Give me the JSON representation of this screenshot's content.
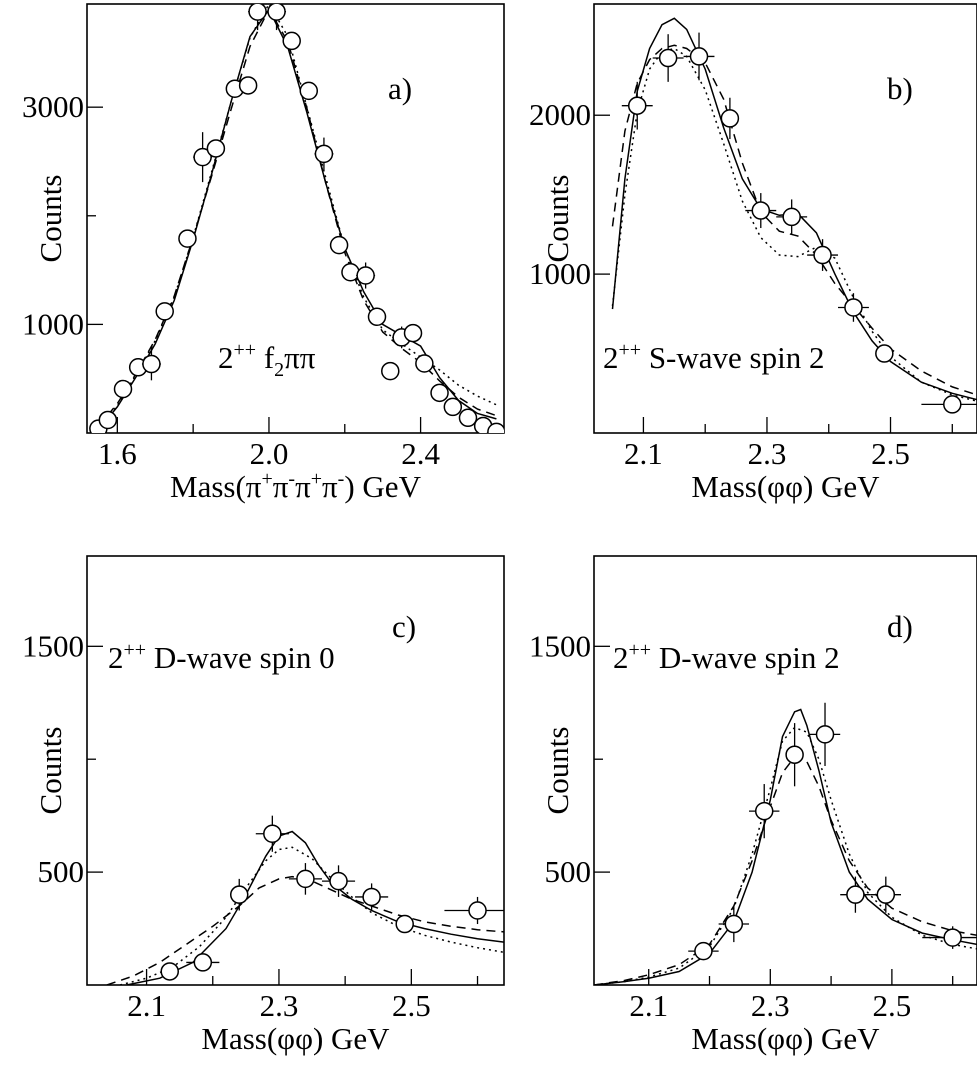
{
  "chart_data": [
    {
      "type": "scatter",
      "panel_label": "a)",
      "annotation": {
        "pre": "2",
        "sup": "++",
        "mid": " f",
        "sub": "2",
        "post": "ππ"
      },
      "xlabel": {
        "pre": "Mass(π",
        "s1": "+",
        "m1": "π",
        "s2": "-",
        "m2": "π",
        "s3": "+",
        "m3": "π",
        "s4": "-",
        "post": ") GeV"
      },
      "ylabel": "Counts",
      "xlim": [
        1.52,
        2.62
      ],
      "ylim": [
        0,
        3950
      ],
      "x_ticks": [
        1.6,
        1.8,
        2.0,
        2.2,
        2.4,
        2.6
      ],
      "x_tick_labels": [
        "1.6",
        "",
        "2.0",
        "",
        "2.4",
        ""
      ],
      "y_ticks": [
        1000,
        2000,
        3000
      ],
      "y_tick_labels": [
        "1000",
        "",
        "3000"
      ],
      "points": [
        {
          "x": 1.55,
          "y": 40,
          "xerr": 0,
          "yerr": 0
        },
        {
          "x": 1.575,
          "y": 120,
          "xerr": 0,
          "yerr": 0
        },
        {
          "x": 1.615,
          "y": 405,
          "xerr": 0,
          "yerr": 0
        },
        {
          "x": 1.655,
          "y": 605,
          "xerr": 0,
          "yerr": 0
        },
        {
          "x": 1.69,
          "y": 635,
          "xerr": 0.025,
          "yerr": 150
        },
        {
          "x": 1.725,
          "y": 1120,
          "xerr": 0,
          "yerr": 0
        },
        {
          "x": 1.785,
          "y": 1790,
          "xerr": 0,
          "yerr": 0
        },
        {
          "x": 1.825,
          "y": 2540,
          "xerr": 0.025,
          "yerr": 230
        },
        {
          "x": 1.86,
          "y": 2620,
          "xerr": 0,
          "yerr": 0
        },
        {
          "x": 1.91,
          "y": 3170,
          "xerr": 0,
          "yerr": 0
        },
        {
          "x": 1.945,
          "y": 3200,
          "xerr": 0,
          "yerr": 0
        },
        {
          "x": 1.97,
          "y": 3880,
          "xerr": 0.025,
          "yerr": 170
        },
        {
          "x": 2.02,
          "y": 3880,
          "xerr": 0.025,
          "yerr": 170
        },
        {
          "x": 2.06,
          "y": 3610,
          "xerr": 0,
          "yerr": 0
        },
        {
          "x": 2.105,
          "y": 3150,
          "xerr": 0,
          "yerr": 0
        },
        {
          "x": 2.145,
          "y": 2570,
          "xerr": 0.025,
          "yerr": 150
        },
        {
          "x": 2.185,
          "y": 1730,
          "xerr": 0,
          "yerr": 0
        },
        {
          "x": 2.215,
          "y": 1480,
          "xerr": 0,
          "yerr": 0
        },
        {
          "x": 2.255,
          "y": 1450,
          "xerr": 0.025,
          "yerr": 120
        },
        {
          "x": 2.285,
          "y": 1070,
          "xerr": 0,
          "yerr": 0
        },
        {
          "x": 2.32,
          "y": 570,
          "xerr": 0,
          "yerr": 0
        },
        {
          "x": 2.35,
          "y": 880,
          "xerr": 0.025,
          "yerr": 100
        },
        {
          "x": 2.38,
          "y": 920,
          "xerr": 0,
          "yerr": 0
        },
        {
          "x": 2.41,
          "y": 640,
          "xerr": 0,
          "yerr": 0
        },
        {
          "x": 2.45,
          "y": 370,
          "xerr": 0,
          "yerr": 0
        },
        {
          "x": 2.485,
          "y": 240,
          "xerr": 0,
          "yerr": 0
        },
        {
          "x": 2.525,
          "y": 140,
          "xerr": 0,
          "yerr": 0
        },
        {
          "x": 2.565,
          "y": 65,
          "xerr": 0,
          "yerr": 0
        },
        {
          "x": 2.6,
          "y": 10,
          "xerr": 0,
          "yerr": 0
        }
      ],
      "curves": [
        {
          "style": "solid",
          "x": [
            1.55,
            1.6,
            1.65,
            1.7,
            1.75,
            1.8,
            1.85,
            1.9,
            1.95,
            2.0,
            2.05,
            2.1,
            2.15,
            2.2,
            2.25,
            2.3,
            2.35,
            2.4,
            2.45,
            2.5,
            2.55,
            2.6
          ],
          "y": [
            30,
            240,
            520,
            820,
            1220,
            1780,
            2400,
            3050,
            3650,
            3900,
            3550,
            2950,
            2300,
            1700,
            1300,
            1000,
            900,
            800,
            510,
            300,
            180,
            130
          ]
        },
        {
          "style": "dashed",
          "x": [
            1.55,
            1.6,
            1.65,
            1.7,
            1.75,
            1.8,
            1.85,
            1.9,
            1.95,
            2.0,
            2.05,
            2.1,
            2.15,
            2.2,
            2.25,
            2.3,
            2.35,
            2.4,
            2.45,
            2.5,
            2.55,
            2.6
          ],
          "y": [
            60,
            270,
            550,
            860,
            1260,
            1800,
            2380,
            2980,
            3560,
            3900,
            3600,
            2990,
            2300,
            1660,
            1220,
            930,
            780,
            650,
            480,
            330,
            220,
            160
          ]
        },
        {
          "style": "dotted",
          "x": [
            1.55,
            1.6,
            1.65,
            1.7,
            1.75,
            1.8,
            1.85,
            1.9,
            1.95,
            2.0,
            2.05,
            2.1,
            2.15,
            2.2,
            2.25,
            2.3,
            2.35,
            2.4,
            2.45,
            2.5,
            2.55,
            2.6
          ],
          "y": [
            50,
            250,
            540,
            850,
            1250,
            1800,
            2420,
            3050,
            3640,
            3950,
            3650,
            3000,
            2350,
            1700,
            1250,
            950,
            820,
            700,
            580,
            440,
            340,
            260
          ]
        }
      ]
    },
    {
      "type": "scatter",
      "panel_label": "b)",
      "annotation": {
        "pre": "2",
        "sup": "++",
        "mid": " S-wave spin 2",
        "sub": "",
        "post": ""
      },
      "xlabel": {
        "pre": "Mass(φφ) GeV",
        "s1": "",
        "m1": "",
        "s2": "",
        "m2": "",
        "s3": "",
        "m3": "",
        "s4": "",
        "post": ""
      },
      "ylabel": "Counts",
      "xlim": [
        2.02,
        2.64
      ],
      "ylim": [
        0,
        2700
      ],
      "x_ticks": [
        2.1,
        2.2,
        2.3,
        2.4,
        2.5,
        2.6
      ],
      "x_tick_labels": [
        "2.1",
        "",
        "2.3",
        "",
        "2.5",
        ""
      ],
      "y_ticks": [
        1000,
        2000
      ],
      "y_tick_labels": [
        "1000",
        "2000"
      ],
      "points": [
        {
          "x": 2.09,
          "y": 2060,
          "xerr": 0.025,
          "yerr": 150
        },
        {
          "x": 2.14,
          "y": 2360,
          "xerr": 0.025,
          "yerr": 150
        },
        {
          "x": 2.19,
          "y": 2370,
          "xerr": 0.025,
          "yerr": 150
        },
        {
          "x": 2.24,
          "y": 1980,
          "xerr": 0,
          "yerr": 130
        },
        {
          "x": 2.29,
          "y": 1400,
          "xerr": 0.025,
          "yerr": 110
        },
        {
          "x": 2.34,
          "y": 1360,
          "xerr": 0.025,
          "yerr": 110
        },
        {
          "x": 2.39,
          "y": 1120,
          "xerr": 0.025,
          "yerr": 100
        },
        {
          "x": 2.44,
          "y": 790,
          "xerr": 0.025,
          "yerr": 90
        },
        {
          "x": 2.49,
          "y": 500,
          "xerr": 0,
          "yerr": 0
        },
        {
          "x": 2.6,
          "y": 180,
          "xerr": 0.05,
          "yerr": 50
        }
      ],
      "curves": [
        {
          "style": "solid",
          "x": [
            2.05,
            2.07,
            2.09,
            2.11,
            2.13,
            2.15,
            2.17,
            2.2,
            2.23,
            2.26,
            2.29,
            2.32,
            2.35,
            2.38,
            2.41,
            2.44,
            2.47,
            2.5,
            2.55,
            2.6,
            2.64
          ],
          "y": [
            780,
            1600,
            2150,
            2420,
            2570,
            2610,
            2540,
            2290,
            1920,
            1600,
            1410,
            1370,
            1380,
            1260,
            1000,
            760,
            580,
            450,
            320,
            250,
            210
          ]
        },
        {
          "style": "dashed",
          "x": [
            2.05,
            2.07,
            2.09,
            2.11,
            2.13,
            2.15,
            2.17,
            2.2,
            2.23,
            2.26,
            2.29,
            2.32,
            2.35,
            2.38,
            2.41,
            2.44,
            2.47,
            2.5,
            2.55,
            2.6,
            2.64
          ],
          "y": [
            1300,
            1900,
            2200,
            2350,
            2420,
            2440,
            2420,
            2330,
            2100,
            1700,
            1390,
            1270,
            1240,
            1120,
            940,
            800,
            660,
            530,
            390,
            290,
            240
          ]
        },
        {
          "style": "dotted",
          "x": [
            2.05,
            2.07,
            2.09,
            2.11,
            2.13,
            2.15,
            2.17,
            2.2,
            2.23,
            2.26,
            2.29,
            2.32,
            2.35,
            2.38,
            2.41,
            2.44,
            2.47,
            2.5,
            2.55,
            2.6,
            2.64
          ],
          "y": [
            800,
            1500,
            2020,
            2290,
            2400,
            2420,
            2370,
            2160,
            1820,
            1460,
            1230,
            1120,
            1110,
            1170,
            1100,
            850,
            640,
            480,
            320,
            240,
            200
          ]
        }
      ]
    },
    {
      "type": "scatter",
      "panel_label": "c)",
      "annotation": {
        "pre": "2",
        "sup": "++",
        "mid": " D-wave spin 0",
        "sub": "",
        "post": ""
      },
      "xlabel": {
        "pre": "Mass(φφ) GeV",
        "s1": "",
        "m1": "",
        "s2": "",
        "m2": "",
        "s3": "",
        "m3": "",
        "s4": "",
        "post": ""
      },
      "ylabel": "Counts",
      "xlim": [
        2.01,
        2.64
      ],
      "ylim": [
        0,
        1900
      ],
      "x_ticks": [
        2.1,
        2.2,
        2.3,
        2.4,
        2.5,
        2.6
      ],
      "x_tick_labels": [
        "2.1",
        "",
        "2.3",
        "",
        "2.5",
        ""
      ],
      "y_ticks": [
        500,
        1000,
        1500
      ],
      "y_tick_labels": [
        "500",
        "",
        "1500"
      ],
      "points": [
        {
          "x": 2.135,
          "y": 60,
          "xerr": 0,
          "yerr": 0
        },
        {
          "x": 2.185,
          "y": 100,
          "xerr": 0.025,
          "yerr": 0
        },
        {
          "x": 2.24,
          "y": 400,
          "xerr": 0,
          "yerr": 70
        },
        {
          "x": 2.29,
          "y": 670,
          "xerr": 0.025,
          "yerr": 80
        },
        {
          "x": 2.34,
          "y": 470,
          "xerr": 0.025,
          "yerr": 70
        },
        {
          "x": 2.39,
          "y": 460,
          "xerr": 0.025,
          "yerr": 70
        },
        {
          "x": 2.44,
          "y": 390,
          "xerr": 0.025,
          "yerr": 60
        },
        {
          "x": 2.49,
          "y": 270,
          "xerr": 0,
          "yerr": 0
        },
        {
          "x": 2.6,
          "y": 330,
          "xerr": 0.05,
          "yerr": 60
        }
      ],
      "curves": [
        {
          "style": "solid",
          "x": [
            2.07,
            2.12,
            2.17,
            2.22,
            2.25,
            2.28,
            2.3,
            2.32,
            2.34,
            2.36,
            2.38,
            2.41,
            2.44,
            2.48,
            2.52,
            2.56,
            2.6,
            2.64
          ],
          "y": [
            0,
            30,
            100,
            250,
            400,
            570,
            660,
            680,
            630,
            530,
            450,
            380,
            330,
            280,
            250,
            225,
            205,
            190
          ]
        },
        {
          "style": "dashed",
          "x": [
            2.04,
            2.08,
            2.12,
            2.16,
            2.2,
            2.24,
            2.27,
            2.3,
            2.32,
            2.35,
            2.38,
            2.41,
            2.44,
            2.48,
            2.52,
            2.56,
            2.6,
            2.64
          ],
          "y": [
            0,
            40,
            100,
            180,
            260,
            350,
            430,
            470,
            480,
            460,
            420,
            380,
            350,
            310,
            280,
            260,
            245,
            235
          ]
        },
        {
          "style": "dotted",
          "x": [
            2.06,
            2.1,
            2.14,
            2.18,
            2.22,
            2.25,
            2.28,
            2.3,
            2.32,
            2.35,
            2.38,
            2.41,
            2.44,
            2.48,
            2.52,
            2.56,
            2.6,
            2.64
          ],
          "y": [
            0,
            30,
            80,
            170,
            300,
            430,
            550,
            600,
            610,
            560,
            470,
            390,
            320,
            260,
            220,
            190,
            165,
            145
          ]
        }
      ]
    },
    {
      "type": "scatter",
      "panel_label": "d)",
      "annotation": {
        "pre": "2",
        "sup": "++",
        "mid": " D-wave spin 2",
        "sub": "",
        "post": ""
      },
      "xlabel": {
        "pre": "Mass(φφ) GeV",
        "s1": "",
        "m1": "",
        "s2": "",
        "m2": "",
        "s3": "",
        "m3": "",
        "s4": "",
        "post": ""
      },
      "ylabel": "Counts",
      "xlim": [
        2.01,
        2.64
      ],
      "ylim": [
        0,
        1900
      ],
      "x_ticks": [
        2.1,
        2.2,
        2.3,
        2.4,
        2.5,
        2.6
      ],
      "x_tick_labels": [
        "2.1",
        "",
        "2.3",
        "",
        "2.5",
        ""
      ],
      "y_ticks": [
        500,
        1000,
        1500
      ],
      "y_tick_labels": [
        "500",
        "",
        "1500"
      ],
      "points": [
        {
          "x": 2.19,
          "y": 150,
          "xerr": 0.025,
          "yerr": 0
        },
        {
          "x": 2.24,
          "y": 270,
          "xerr": 0.025,
          "yerr": 80
        },
        {
          "x": 2.29,
          "y": 770,
          "xerr": 0.025,
          "yerr": 120
        },
        {
          "x": 2.34,
          "y": 1020,
          "xerr": 0,
          "yerr": 140
        },
        {
          "x": 2.39,
          "y": 1110,
          "xerr": 0.025,
          "yerr": 140
        },
        {
          "x": 2.44,
          "y": 400,
          "xerr": 0.025,
          "yerr": 80
        },
        {
          "x": 2.49,
          "y": 400,
          "xerr": 0.025,
          "yerr": 80
        },
        {
          "x": 2.6,
          "y": 210,
          "xerr": 0.05,
          "yerr": 50
        }
      ],
      "curves": [
        {
          "style": "solid",
          "x": [
            2.01,
            2.06,
            2.1,
            2.15,
            2.2,
            2.24,
            2.27,
            2.3,
            2.32,
            2.34,
            2.35,
            2.36,
            2.38,
            2.4,
            2.43,
            2.46,
            2.5,
            2.55,
            2.6,
            2.64
          ],
          "y": [
            0,
            15,
            30,
            60,
            140,
            280,
            500,
            820,
            1100,
            1210,
            1220,
            1150,
            950,
            720,
            500,
            380,
            290,
            230,
            200,
            180
          ]
        },
        {
          "style": "dashed",
          "x": [
            2.01,
            2.06,
            2.1,
            2.15,
            2.2,
            2.24,
            2.27,
            2.3,
            2.32,
            2.34,
            2.36,
            2.38,
            2.4,
            2.43,
            2.46,
            2.5,
            2.55,
            2.6,
            2.64
          ],
          "y": [
            0,
            20,
            45,
            90,
            180,
            350,
            550,
            790,
            940,
            1010,
            990,
            880,
            730,
            550,
            430,
            340,
            280,
            240,
            220
          ]
        },
        {
          "style": "dotted",
          "x": [
            2.01,
            2.06,
            2.1,
            2.15,
            2.2,
            2.24,
            2.27,
            2.3,
            2.32,
            2.34,
            2.36,
            2.38,
            2.4,
            2.43,
            2.46,
            2.5,
            2.55,
            2.6,
            2.64
          ],
          "y": [
            0,
            15,
            35,
            75,
            170,
            340,
            580,
            870,
            1080,
            1140,
            1120,
            1000,
            820,
            580,
            410,
            300,
            220,
            180,
            160
          ]
        }
      ]
    }
  ]
}
